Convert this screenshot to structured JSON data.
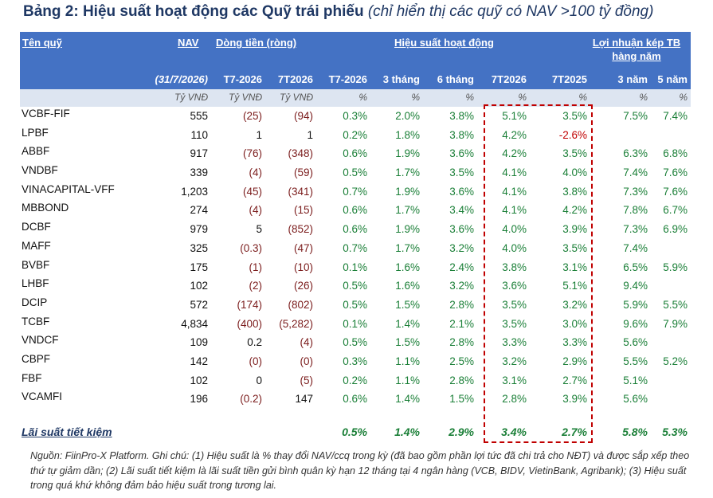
{
  "title": {
    "main": "Bảng 2: Hiệu suất hoạt động các Quỹ trái phiếu",
    "sub": " (chỉ hiển thị các quỹ có NAV >100 tỷ đồng)"
  },
  "header": {
    "fund_name": "Tên quỹ",
    "nav": "NAV",
    "net_flow": "Dòng tiền (ròng)",
    "performance": "Hiệu suất hoạt động",
    "compound_line1": "Lợi nhuận kép TB",
    "compound_line2": "hàng năm",
    "nav_date": "(31/7/2026)",
    "flow_t7": "T7-2026",
    "flow_7t": "7T2026",
    "perf_t7": "T7-2026",
    "perf_3m": "3 tháng",
    "perf_6m": "6 tháng",
    "perf_7t2026": "7T2026",
    "perf_7t2025": "7T2025",
    "cagr_3y": "3 năm",
    "cagr_5y": "5 năm"
  },
  "units": [
    "Tỷ VNĐ",
    "Tỷ VNĐ",
    "Tỷ VNĐ",
    "%",
    "%",
    "%",
    "%",
    "%",
    "%",
    "%"
  ],
  "rows": [
    {
      "name": "VCBF-FIF",
      "nav": "555",
      "flow_t7": "(25)",
      "flow_7t": "(94)",
      "p_t7": "0.3%",
      "p_3m": "2.0%",
      "p_6m": "3.8%",
      "p_7t26": "5.1%",
      "p_7t25": "3.5%",
      "c3": "7.5%",
      "c5": "7.4%"
    },
    {
      "name": "LPBF",
      "nav": "110",
      "flow_t7": "1",
      "flow_7t": "1",
      "p_t7": "0.2%",
      "p_3m": "1.8%",
      "p_6m": "3.8%",
      "p_7t26": "4.2%",
      "p_7t25": "-2.6%",
      "c3": "",
      "c5": ""
    },
    {
      "name": "ABBF",
      "nav": "917",
      "flow_t7": "(76)",
      "flow_7t": "(348)",
      "p_t7": "0.6%",
      "p_3m": "1.9%",
      "p_6m": "3.6%",
      "p_7t26": "4.2%",
      "p_7t25": "3.5%",
      "c3": "6.3%",
      "c5": "6.8%"
    },
    {
      "name": "VNDBF",
      "nav": "339",
      "flow_t7": "(4)",
      "flow_7t": "(59)",
      "p_t7": "0.5%",
      "p_3m": "1.7%",
      "p_6m": "3.5%",
      "p_7t26": "4.1%",
      "p_7t25": "4.0%",
      "c3": "7.4%",
      "c5": "7.6%"
    },
    {
      "name": "VINACAPITAL-VFF",
      "nav": "1,203",
      "flow_t7": "(45)",
      "flow_7t": "(341)",
      "p_t7": "0.7%",
      "p_3m": "1.9%",
      "p_6m": "3.6%",
      "p_7t26": "4.1%",
      "p_7t25": "3.8%",
      "c3": "7.3%",
      "c5": "7.6%"
    },
    {
      "name": "MBBOND",
      "nav": "274",
      "flow_t7": "(4)",
      "flow_7t": "(15)",
      "p_t7": "0.6%",
      "p_3m": "1.7%",
      "p_6m": "3.4%",
      "p_7t26": "4.1%",
      "p_7t25": "4.2%",
      "c3": "7.8%",
      "c5": "6.7%"
    },
    {
      "name": "DCBF",
      "nav": "979",
      "flow_t7": "5",
      "flow_7t": "(852)",
      "p_t7": "0.6%",
      "p_3m": "1.9%",
      "p_6m": "3.6%",
      "p_7t26": "4.0%",
      "p_7t25": "3.9%",
      "c3": "7.3%",
      "c5": "6.9%"
    },
    {
      "name": "MAFF",
      "nav": "325",
      "flow_t7": "(0.3)",
      "flow_7t": "(47)",
      "p_t7": "0.7%",
      "p_3m": "1.7%",
      "p_6m": "3.2%",
      "p_7t26": "4.0%",
      "p_7t25": "3.5%",
      "c3": "7.4%",
      "c5": ""
    },
    {
      "name": "BVBF",
      "nav": "175",
      "flow_t7": "(1)",
      "flow_7t": "(10)",
      "p_t7": "0.1%",
      "p_3m": "1.6%",
      "p_6m": "2.4%",
      "p_7t26": "3.8%",
      "p_7t25": "3.1%",
      "c3": "6.5%",
      "c5": "5.9%"
    },
    {
      "name": "LHBF",
      "nav": "102",
      "flow_t7": "(2)",
      "flow_7t": "(26)",
      "p_t7": "0.5%",
      "p_3m": "1.6%",
      "p_6m": "3.2%",
      "p_7t26": "3.6%",
      "p_7t25": "5.1%",
      "c3": "9.4%",
      "c5": ""
    },
    {
      "name": "DCIP",
      "nav": "572",
      "flow_t7": "(174)",
      "flow_7t": "(802)",
      "p_t7": "0.5%",
      "p_3m": "1.5%",
      "p_6m": "2.8%",
      "p_7t26": "3.5%",
      "p_7t25": "3.2%",
      "c3": "5.9%",
      "c5": "5.5%"
    },
    {
      "name": "TCBF",
      "nav": "4,834",
      "flow_t7": "(400)",
      "flow_7t": "(5,282)",
      "p_t7": "0.1%",
      "p_3m": "1.4%",
      "p_6m": "2.1%",
      "p_7t26": "3.5%",
      "p_7t25": "3.0%",
      "c3": "9.6%",
      "c5": "7.9%"
    },
    {
      "name": "VNDCF",
      "nav": "109",
      "flow_t7": "0.2",
      "flow_7t": "(4)",
      "p_t7": "0.5%",
      "p_3m": "1.5%",
      "p_6m": "2.8%",
      "p_7t26": "3.3%",
      "p_7t25": "3.3%",
      "c3": "5.6%",
      "c5": ""
    },
    {
      "name": "CBPF",
      "nav": "142",
      "flow_t7": "(0)",
      "flow_7t": "(0)",
      "p_t7": "0.3%",
      "p_3m": "1.1%",
      "p_6m": "2.5%",
      "p_7t26": "3.2%",
      "p_7t25": "2.9%",
      "c3": "5.5%",
      "c5": "5.2%"
    },
    {
      "name": "FBF",
      "nav": "102",
      "flow_t7": "0",
      "flow_7t": "(5)",
      "p_t7": "0.2%",
      "p_3m": "1.1%",
      "p_6m": "2.8%",
      "p_7t26": "3.1%",
      "p_7t25": "2.7%",
      "c3": "5.1%",
      "c5": ""
    },
    {
      "name": "VCAMFI",
      "nav": "196",
      "flow_t7": "(0.2)",
      "flow_7t": "147",
      "p_t7": "0.6%",
      "p_3m": "1.4%",
      "p_6m": "1.5%",
      "p_7t26": "2.8%",
      "p_7t25": "3.9%",
      "c3": "5.6%",
      "c5": ""
    }
  ],
  "savings": {
    "label": "Lãi suất tiết kiệm",
    "p_t7": "0.5%",
    "p_3m": "1.4%",
    "p_6m": "2.9%",
    "p_7t26": "3.4%",
    "p_7t25": "2.7%",
    "c3": "5.8%",
    "c5": "5.3%"
  },
  "footnote": "Nguồn: FiinPro-X Platform. Ghi chú: (1) Hiệu suất là % thay đổi NAV/ccq trong kỳ (đã bao gồm phần lợi tức đã chi trả cho NĐT) và được sắp xếp theo thứ tự giảm dần; (2) Lãi suất tiết kiệm là lãi suất tiền gửi bình quân kỳ hạn 12 tháng tại 4 ngân hàng (VCB, BIDV, VietinBank, Agribank); (3) Hiệu suất trong quá khứ không đảm bảo hiệu suất trong tương lai.",
  "colors": {
    "header_bg": "#4472c4",
    "units_bg": "#dde5f1",
    "title": "#1f3864",
    "positive": "#1a7f37",
    "negative": "#c00000",
    "highlight_border": "#c00000"
  }
}
